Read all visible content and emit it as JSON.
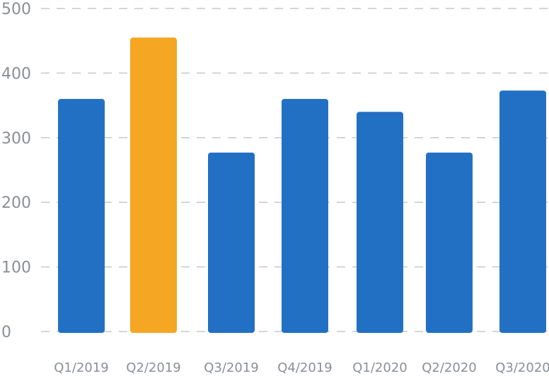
{
  "chart_data": {
    "type": "bar",
    "categories": [
      "Q1/2019",
      "Q2/2019",
      "Q3/2019",
      "Q4/2019",
      "Q1/2020",
      "Q2/2020",
      "Q3/2020"
    ],
    "values": [
      360,
      455,
      277,
      360,
      340,
      277,
      373
    ],
    "highlight_index": 1,
    "colors": {
      "bar": "#2270c4",
      "highlight": "#f5a623",
      "grid": "#c8c8c8",
      "tick_text": "#8a8e96"
    },
    "ylim": [
      0,
      500
    ],
    "yticks": [
      0,
      100,
      200,
      300,
      400,
      500
    ],
    "grid": true,
    "grid_style": "dashed",
    "title": "",
    "xlabel": "",
    "ylabel": "",
    "legend": "none"
  }
}
